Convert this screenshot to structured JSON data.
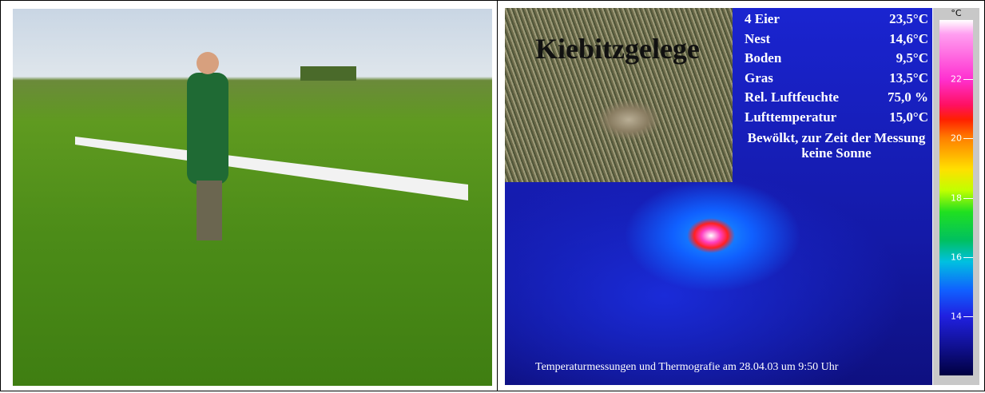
{
  "thermal": {
    "title": "Kiebitzgelege",
    "measurements": [
      [
        "4 Eier",
        "23,5°C"
      ],
      [
        "Nest",
        "14,6°C"
      ],
      [
        "Boden",
        "9,5°C"
      ],
      [
        "Gras",
        "13,5°C"
      ],
      [
        "Rel. Luftfeuchte",
        "75,0 %"
      ],
      [
        "Lufttemperatur",
        "15,0°C"
      ]
    ],
    "note": "Bewölkt, zur Zeit der Messung keine Sonne",
    "caption": "Temperaturmessungen und Thermografie am 28.04.03 um 9:50 Uhr",
    "scale": {
      "unit": "°C",
      "ylim": [
        12,
        24
      ],
      "yticks": [
        22,
        20,
        18,
        16,
        14
      ]
    }
  }
}
